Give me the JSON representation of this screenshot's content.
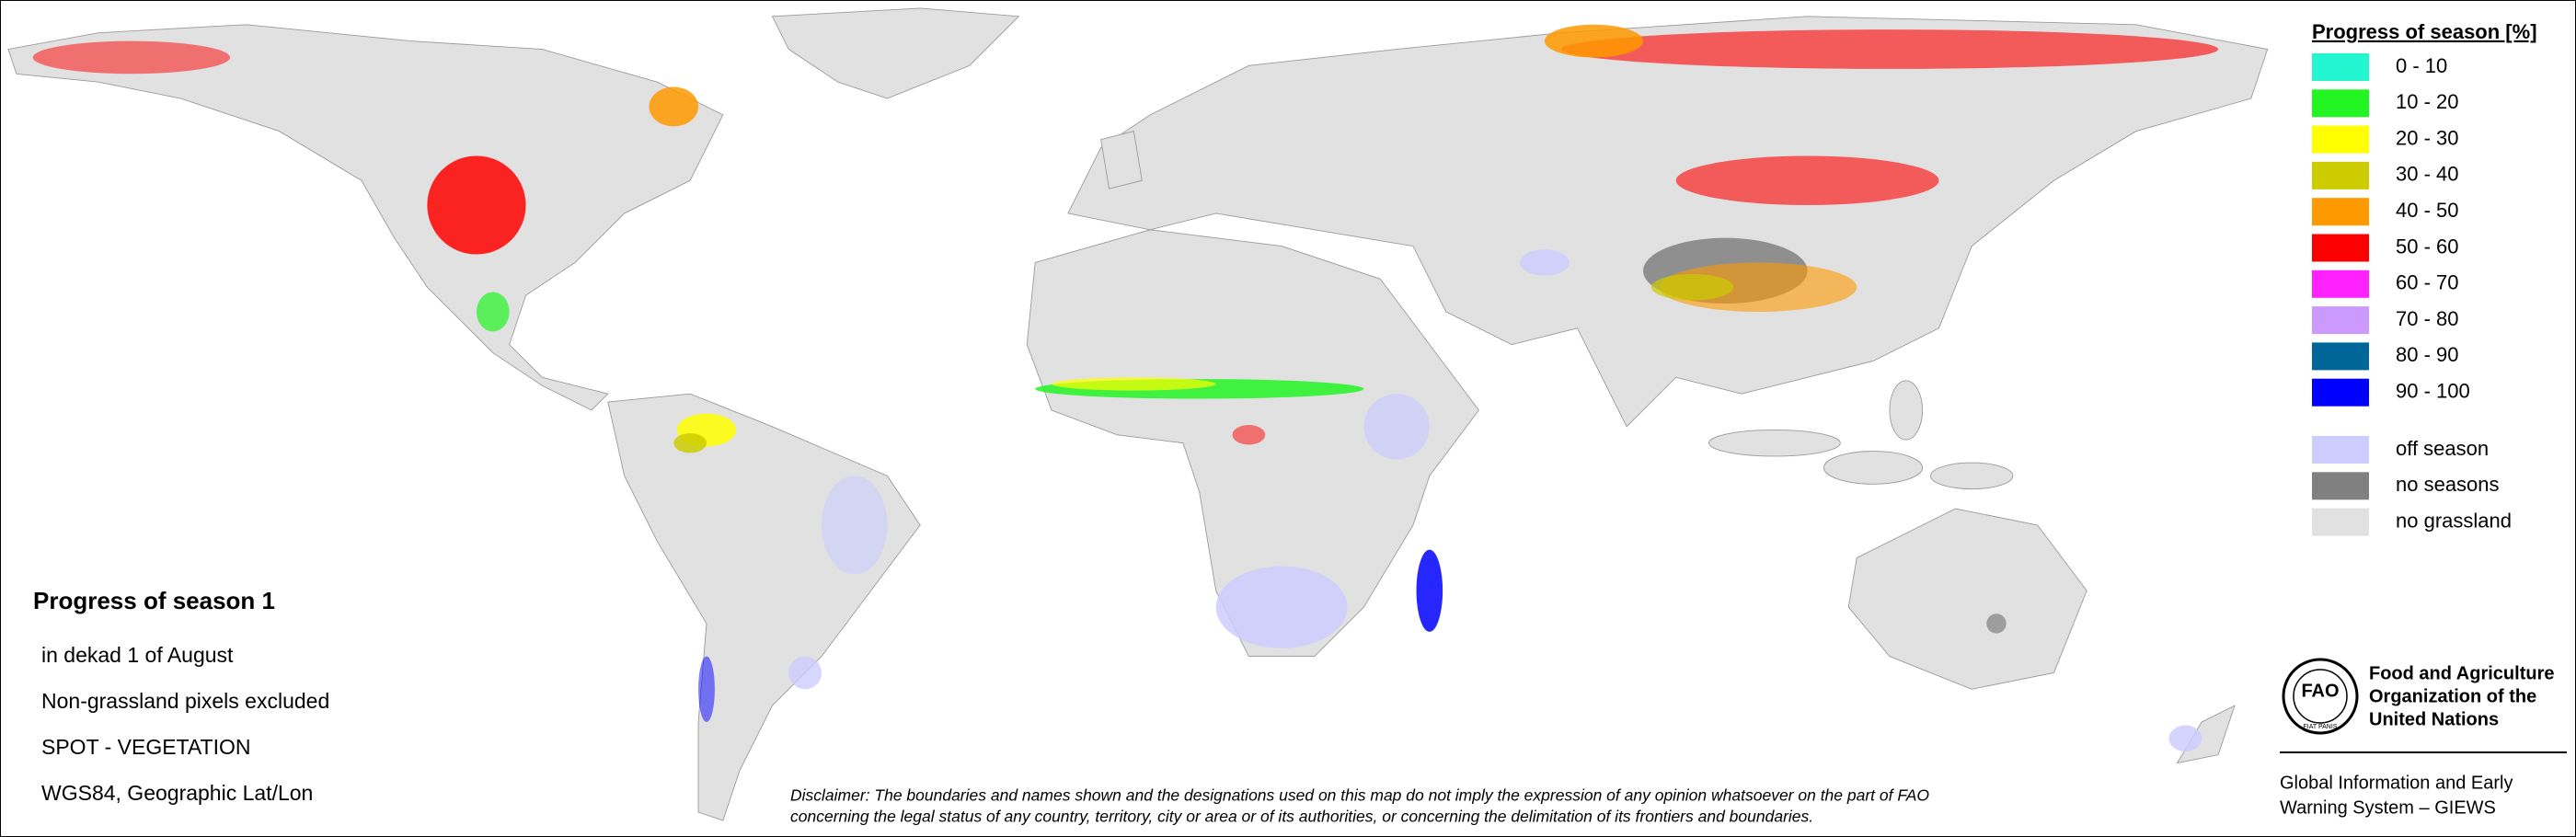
{
  "legend": {
    "title": "Progress of season [%]",
    "items": [
      {
        "label": "0 - 10",
        "color": "#22f5d0"
      },
      {
        "label": "10 - 20",
        "color": "#22f522"
      },
      {
        "label": "20 - 30",
        "color": "#ffff00"
      },
      {
        "label": "30 - 40",
        "color": "#cccc00"
      },
      {
        "label": "40 - 50",
        "color": "#ff9900"
      },
      {
        "label": "50 - 60",
        "color": "#ff0000"
      },
      {
        "label": "60 - 70",
        "color": "#ff22ff"
      },
      {
        "label": "70 - 80",
        "color": "#cc99ff"
      },
      {
        "label": "80 - 90",
        "color": "#006699"
      },
      {
        "label": "90 - 100",
        "color": "#0000ff"
      }
    ],
    "extra_items": [
      {
        "label": "off season",
        "color": "#ccccff"
      },
      {
        "label": "no seasons",
        "color": "#808080"
      },
      {
        "label": "no grassland",
        "color": "#e1e1e1"
      }
    ]
  },
  "info": {
    "title": "Progress of season 1",
    "lines": [
      "in dekad 1 of August",
      "Non-grassland pixels excluded",
      "SPOT - VEGETATION",
      "WGS84, Geographic Lat/Lon"
    ]
  },
  "disclaimer": [
    "Disclaimer: The boundaries and names shown and the designations used on this map do not imply the expression of any opinion whatsoever on the part of FAO",
    "concerning the legal status of any country, territory, city or area or of its authorities, or concerning the delimitation of its frontiers and boundaries."
  ],
  "organization": {
    "logo": "FAO",
    "motto": "FIAT PANIS",
    "name_lines": [
      "Food and Agriculture",
      "Organization of the",
      "United Nations"
    ],
    "system_lines": [
      "Global Information and Early",
      "Warning System – GIEWS"
    ]
  }
}
